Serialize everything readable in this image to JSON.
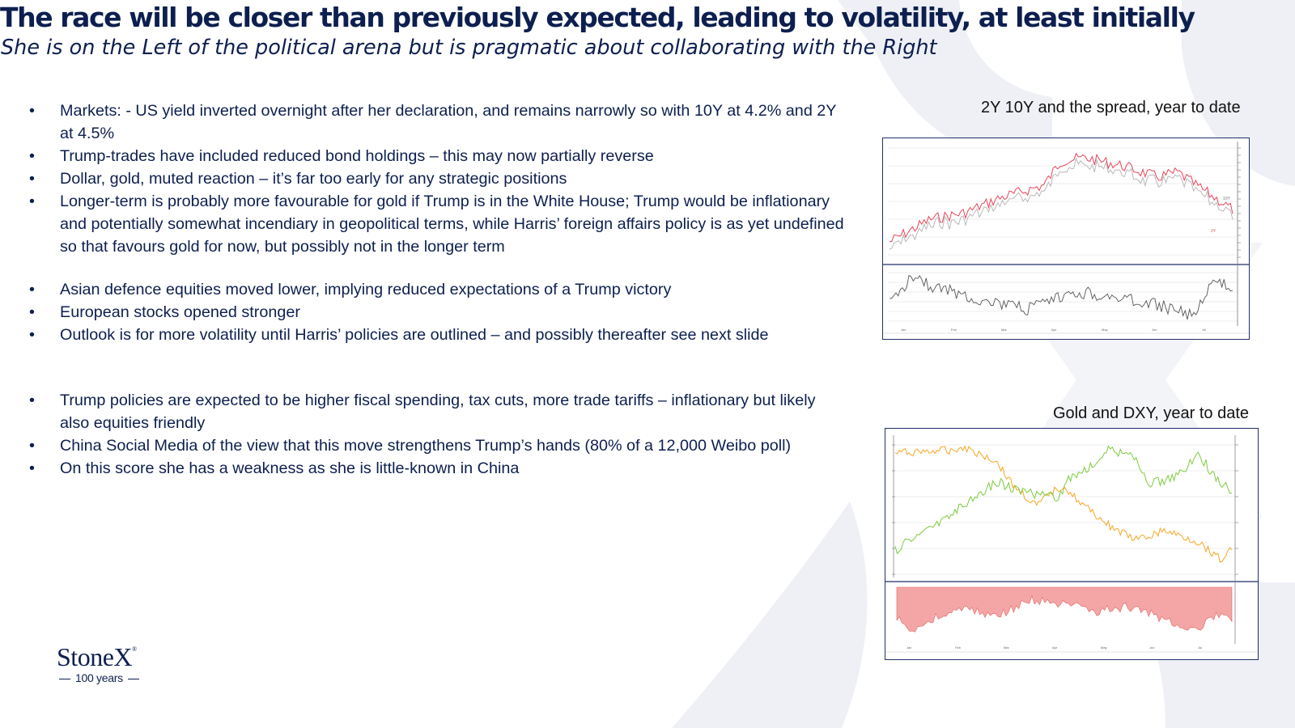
{
  "slide": {
    "title": "The race will be closer than previously expected, leading to volatility, at least initially",
    "subtitle": "She is on the Left of the political arena but is pragmatic about collaborating with the Right"
  },
  "bullets": {
    "marker": "•",
    "group1": [
      "Markets: - US yield inverted overnight after her declaration, and remains narrowly so with 10Y at 4.2% and 2Y at 4.5%",
      "Trump-trades have included reduced bond holdings – this may now partially reverse",
      "Dollar, gold, muted reaction – it’s far too early for any strategic positions",
      "Longer-term is probably more favourable for gold if Trump is in the White House;  Trump would be inflationary and potentially somewhat incendiary in geopolitical terms, while Harris’ foreign affairs policy is as yet undefined so that favours gold for now, but possibly not in the longer term"
    ],
    "group2": [
      "Asian defence equities moved lower, implying reduced expectations of a Trump victory",
      "European stocks opened stronger",
      "Outlook is for more volatility until Harris’ policies are outlined – and possibly thereafter see next slide"
    ],
    "group3": [
      "Trump policies are expected to be higher fiscal spending, tax cuts, more trade tariffs – inflationary but likely also equities friendly",
      "China Social Media of the view that this move strengthens Trump’s hands (80% of a 12,000 Weibo poll)",
      "On this score she has a weakness as she is little-known in China"
    ]
  },
  "charts": {
    "yields": {
      "caption": "2Y 10Y and the spread, year to date",
      "colors": {
        "two_year": "#e8445a",
        "ten_year": "#b9b9b9",
        "spread": "#555555"
      },
      "line_labels": [
        "10Y",
        "2Y"
      ],
      "months": [
        "Jan",
        "Feb",
        "Mar",
        "Apr",
        "May",
        "Jun",
        "Jul"
      ]
    },
    "gold_dxy": {
      "caption": "Gold and DXY, year to date",
      "colors": {
        "gold": "#f5a623",
        "dxy": "#7ccc3c",
        "diff": "#f08080"
      },
      "months": [
        "Jan",
        "Feb",
        "Mar",
        "Apr",
        "May",
        "Jun",
        "Jul"
      ]
    }
  },
  "logo": {
    "name": "StoneX",
    "mark": "®",
    "tagline": "100 years"
  }
}
